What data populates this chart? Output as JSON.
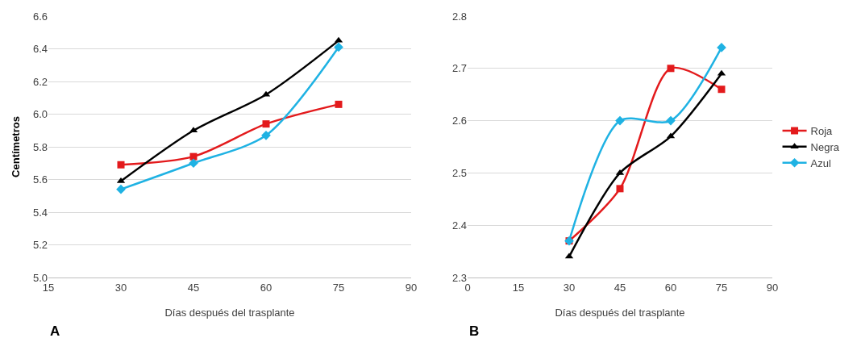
{
  "chart_data": [
    {
      "type": "line",
      "xlabel": "Días después del trasplante",
      "ylabel": "Centímetros",
      "annotations": [
        "A"
      ],
      "x": [
        30,
        45,
        60,
        75
      ],
      "series": [
        {
          "color": "#e31a1c",
          "marker": "square",
          "values": [
            5.69,
            5.74,
            5.94,
            6.06
          ]
        },
        {
          "color": "#000000",
          "marker": "triangle",
          "values": [
            5.59,
            5.9,
            6.12,
            6.45
          ]
        },
        {
          "color": "#1fb2e3",
          "marker": "diamond",
          "values": [
            5.54,
            5.7,
            5.87,
            6.41
          ]
        }
      ],
      "xlim": [
        15,
        90
      ],
      "xticks": [
        15,
        30,
        45,
        60,
        75,
        90
      ],
      "ylim": [
        5,
        6.6
      ],
      "yticks": [
        {
          "value": 5,
          "label": "5.0"
        },
        5.2,
        5.4,
        5.6,
        5.8,
        {
          "value": 6,
          "label": "6.0"
        },
        6.2,
        6.4,
        6.6
      ],
      "grid": "y",
      "legend": false
    },
    {
      "type": "line",
      "xlabel": "Días después del trasplante",
      "annotations": [
        "B"
      ],
      "x": [
        30,
        45,
        60,
        75
      ],
      "series": [
        {
          "name": "Roja",
          "color": "#e31a1c",
          "marker": "square",
          "values": [
            2.37,
            2.47,
            2.7,
            2.66
          ]
        },
        {
          "name": "Negra",
          "color": "#000000",
          "marker": "triangle",
          "values": [
            2.34,
            2.5,
            2.57,
            2.69
          ]
        },
        {
          "name": "Azul",
          "color": "#1fb2e3",
          "marker": "diamond",
          "values": [
            2.37,
            2.6,
            2.6,
            2.74
          ]
        }
      ],
      "xlim": [
        0,
        90
      ],
      "xticks": [
        0,
        15,
        30,
        45,
        60,
        75,
        90
      ],
      "ylim": [
        2.3,
        2.8
      ],
      "yticks": [
        2.3,
        2.4,
        2.5,
        2.6,
        2.7,
        2.8
      ],
      "grid": "y",
      "legend": "right"
    }
  ]
}
